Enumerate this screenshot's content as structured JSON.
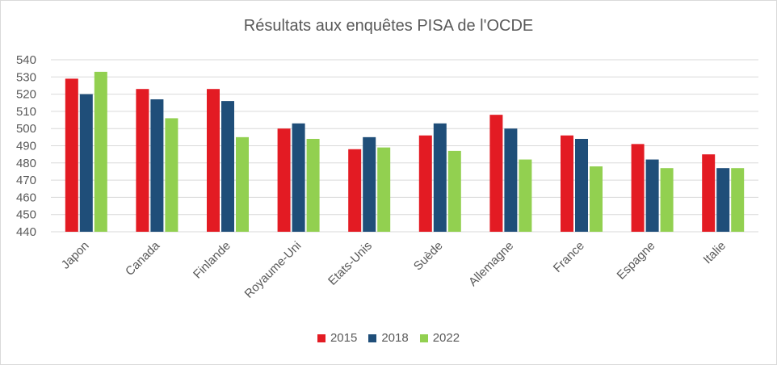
{
  "chart_data": {
    "type": "bar",
    "title": "Résultats aux enquêtes PISA de l'OCDE",
    "categories": [
      "Japon",
      "Canada",
      "Finlande",
      "Royaume-Uni",
      "Etats-Unis",
      "Suède",
      "Allemagne",
      "France",
      "Espagne",
      "Italie"
    ],
    "series": [
      {
        "name": "2015",
        "color": "#e31b23",
        "values": [
          529,
          523,
          523,
          500,
          488,
          496,
          508,
          496,
          491,
          485
        ]
      },
      {
        "name": "2018",
        "color": "#1f4e79",
        "values": [
          520,
          517,
          516,
          503,
          495,
          503,
          500,
          494,
          482,
          477
        ]
      },
      {
        "name": "2022",
        "color": "#92d050",
        "values": [
          533,
          506,
          495,
          494,
          489,
          487,
          482,
          478,
          477,
          477
        ]
      }
    ],
    "ylim": [
      440,
      540
    ],
    "yticks": [
      440,
      450,
      460,
      470,
      480,
      490,
      500,
      510,
      520,
      530,
      540
    ],
    "grid": true,
    "legend_position": "bottom"
  }
}
